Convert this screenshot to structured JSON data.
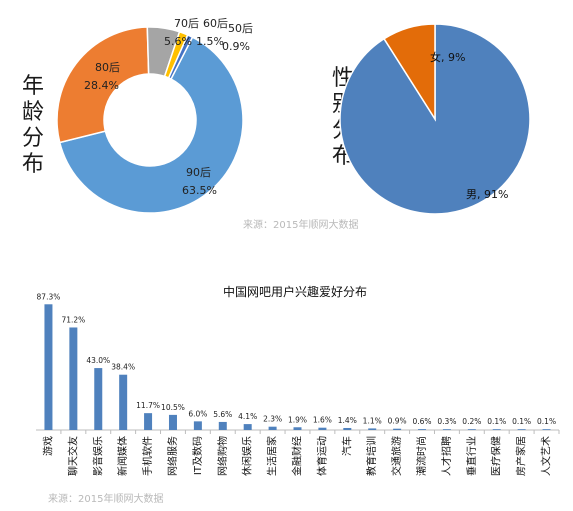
{
  "age_title": "年龄分布",
  "gender_title": "性别分布",
  "source_top": "来源：2015年顺网大数据",
  "source_bottom": "来源：2015年顺网大数据",
  "chart_data": [
    {
      "type": "pie",
      "title": "年龄分布",
      "categories": [
        "90后",
        "80后",
        "70后",
        "60后",
        "50后"
      ],
      "values": [
        63.5,
        28.4,
        5.6,
        1.5,
        0.9
      ],
      "labels": [
        "63.5%",
        "28.4%",
        "5.6%",
        "1.5%",
        "0.9%"
      ],
      "colors": [
        "#5b9bd5",
        "#ed7d31",
        "#a5a5a5",
        "#ffc000",
        "#4472c4"
      ],
      "donut": true
    },
    {
      "type": "pie",
      "title": "性别分布",
      "categories": [
        "男",
        "女"
      ],
      "values": [
        91,
        9
      ],
      "labels": [
        "男, 91%",
        "女, 9%"
      ],
      "colors": [
        "#4f81bd",
        "#e36c09"
      ],
      "donut": false
    },
    {
      "type": "bar",
      "title": "中国网吧用户兴趣爱好分布",
      "categories": [
        "游戏",
        "聊天交友",
        "影音娱乐",
        "新闻媒体",
        "手机软件",
        "网络服务",
        "IT及数码",
        "网络购物",
        "休闲娱乐",
        "生活居家",
        "金融财经",
        "体育运动",
        "汽车",
        "教育培训",
        "交通旅游",
        "潮流时尚",
        "人才招聘",
        "垂直行业",
        "医疗保健",
        "房产家居",
        "人文艺术"
      ],
      "values": [
        87.3,
        71.2,
        43.0,
        38.4,
        11.7,
        10.5,
        6.0,
        5.6,
        4.1,
        2.3,
        1.9,
        1.6,
        1.4,
        1.1,
        0.9,
        0.6,
        0.3,
        0.2,
        0.1,
        0.1,
        0.1
      ],
      "value_labels": [
        "87.3%",
        "71.2%",
        "43.0%",
        "38.4%",
        "11.7%",
        "10.5%",
        "6.0%",
        "5.6%",
        "4.1%",
        "2.3%",
        "1.9%",
        "1.6%",
        "1.4%",
        "1.1%",
        "0.9%",
        "0.6%",
        "0.3%",
        "0.2%",
        "0.1%",
        "0.1%",
        "0.1%"
      ],
      "color": "#4f81bd",
      "ylim": [
        0,
        100
      ],
      "grid": false
    }
  ]
}
